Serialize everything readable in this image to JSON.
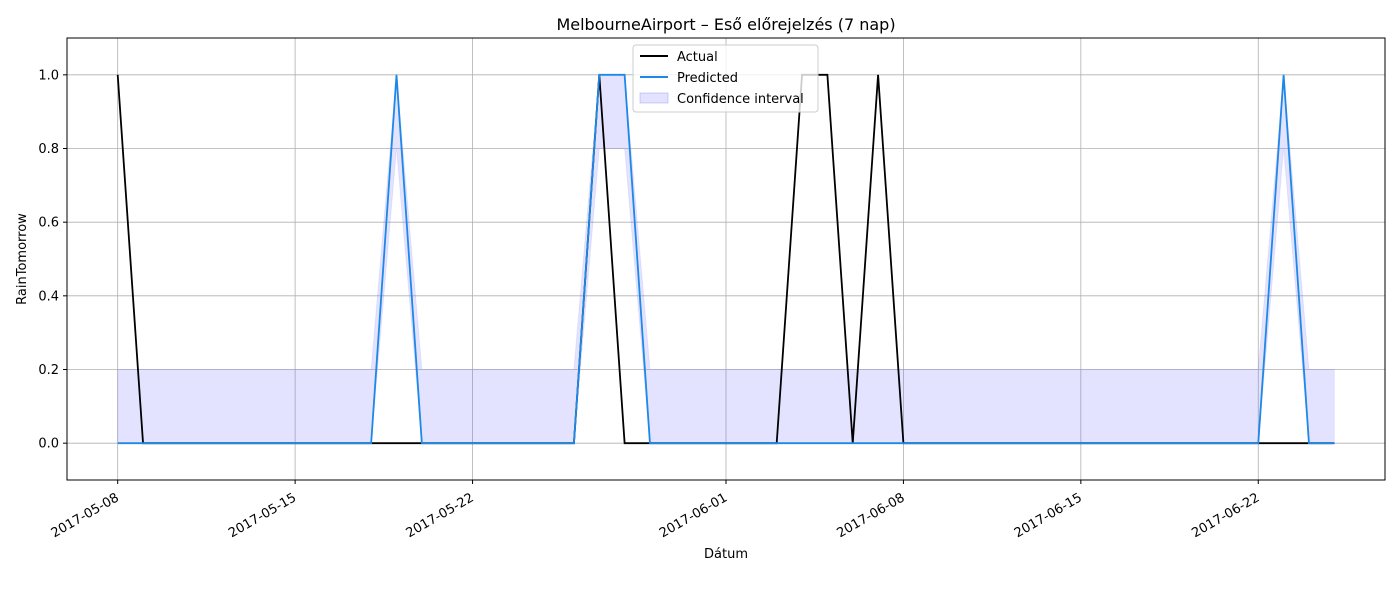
{
  "chart_data": {
    "type": "line",
    "title": "MelbourneAirport – Eső előrejelzés (7 nap)",
    "xlabel": "Dátum",
    "ylabel": "RainTomorrow",
    "xlim": [
      "2017-05-06",
      "2017-06-27"
    ],
    "ylim": [
      -0.1,
      1.1
    ],
    "grid": true,
    "legend_position": "top-center",
    "x_ticks": [
      "2017-05-08",
      "2017-05-15",
      "2017-05-22",
      "2017-06-01",
      "2017-06-08",
      "2017-06-15",
      "2017-06-22"
    ],
    "y_ticks": [
      0.0,
      0.2,
      0.4,
      0.6,
      0.8,
      1.0
    ],
    "dates": [
      "2017-05-08",
      "2017-05-09",
      "2017-05-10",
      "2017-05-11",
      "2017-05-12",
      "2017-05-13",
      "2017-05-14",
      "2017-05-15",
      "2017-05-16",
      "2017-05-17",
      "2017-05-18",
      "2017-05-19",
      "2017-05-20",
      "2017-05-21",
      "2017-05-22",
      "2017-05-23",
      "2017-05-24",
      "2017-05-25",
      "2017-05-26",
      "2017-05-27",
      "2017-05-28",
      "2017-05-29",
      "2017-05-30",
      "2017-05-31",
      "2017-06-01",
      "2017-06-02",
      "2017-06-03",
      "2017-06-04",
      "2017-06-05",
      "2017-06-06",
      "2017-06-07",
      "2017-06-08",
      "2017-06-09",
      "2017-06-10",
      "2017-06-11",
      "2017-06-12",
      "2017-06-13",
      "2017-06-14",
      "2017-06-15",
      "2017-06-16",
      "2017-06-17",
      "2017-06-18",
      "2017-06-19",
      "2017-06-20",
      "2017-06-21",
      "2017-06-22",
      "2017-06-23",
      "2017-06-24",
      "2017-06-25"
    ],
    "series": [
      {
        "name": "Actual",
        "color": "#000000",
        "values": [
          1,
          0,
          0,
          0,
          0,
          0,
          0,
          0,
          0,
          0,
          0,
          0,
          0,
          0,
          0,
          0,
          0,
          0,
          0,
          1,
          0,
          0,
          0,
          0,
          0,
          0,
          0,
          1,
          1,
          0,
          1,
          0,
          0,
          0,
          0,
          0,
          0,
          0,
          0,
          0,
          0,
          0,
          0,
          0,
          0,
          0,
          0,
          0,
          0
        ]
      },
      {
        "name": "Predicted",
        "color": "#1f88e5",
        "values": [
          0,
          0,
          0,
          0,
          0,
          0,
          0,
          0,
          0,
          0,
          0,
          1,
          0,
          0,
          0,
          0,
          0,
          0,
          0,
          1,
          1,
          0,
          0,
          0,
          0,
          0,
          0,
          0,
          0,
          0,
          0,
          0,
          0,
          0,
          0,
          0,
          0,
          0,
          0,
          0,
          0,
          0,
          0,
          0,
          0,
          0,
          1,
          0,
          0
        ]
      }
    ],
    "confidence_interval": {
      "name": "Confidence interval",
      "color": "#6666ff",
      "lower": [
        0,
        0,
        0,
        0,
        0,
        0,
        0,
        0,
        0,
        0,
        0,
        0.8,
        0,
        0,
        0,
        0,
        0,
        0,
        0,
        0.8,
        0.8,
        0,
        0,
        0,
        0,
        0,
        0,
        0,
        0,
        0,
        0,
        0,
        0,
        0,
        0,
        0,
        0,
        0,
        0,
        0,
        0,
        0,
        0,
        0,
        0,
        0,
        0.8,
        0,
        0
      ],
      "upper": [
        0.2,
        0.2,
        0.2,
        0.2,
        0.2,
        0.2,
        0.2,
        0.2,
        0.2,
        0.2,
        0.2,
        1,
        0.2,
        0.2,
        0.2,
        0.2,
        0.2,
        0.2,
        0.2,
        1,
        1,
        0.2,
        0.2,
        0.2,
        0.2,
        0.2,
        0.2,
        0.2,
        0.2,
        0.2,
        0.2,
        0.2,
        0.2,
        0.2,
        0.2,
        0.2,
        0.2,
        0.2,
        0.2,
        0.2,
        0.2,
        0.2,
        0.2,
        0.2,
        0.2,
        0.2,
        1,
        0.2,
        0.2
      ]
    }
  }
}
